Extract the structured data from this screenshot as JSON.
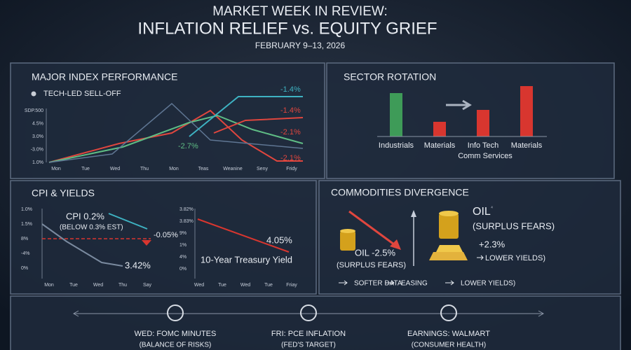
{
  "header": {
    "title": "MARKET WEEK IN REVIEW:",
    "subtitle": "INFLATION RELIEF vs.  EQUITY GRIEF",
    "date": "FEBRUARY 9–13, 2026"
  },
  "index_panel": {
    "title": "MAJOR INDEX PERFORMANCE",
    "legend": "TECH-LED SELL-OFF",
    "yticks": [
      "SDP.500",
      "4.5%",
      "3.0%",
      "-3.0%",
      "1.0%"
    ],
    "xticks": [
      "Mon",
      "Tue",
      "Wed",
      "Thu",
      "Mon",
      "Teas",
      "Weanine",
      "Seny",
      "Fridy"
    ],
    "labels": [
      "-1.4%",
      "-1.4%",
      "-2.1%",
      "-2.7%",
      "-2.1%"
    ]
  },
  "sector_panel": {
    "title": "SECTOR ROTATION",
    "categories": [
      "Industrials",
      "Materials",
      "Info Tech",
      "Materials"
    ],
    "note": "Comm Services"
  },
  "cpi_panel": {
    "title": "CPI & YIELDS",
    "left_yticks": [
      "1.0%",
      "1.5%",
      "8%",
      "-4%",
      "0%"
    ],
    "left_xticks": [
      "Mon",
      "Tue",
      "Wed",
      "Thu",
      "Say"
    ],
    "cpi": "CPI 0.2%",
    "cpi_note": "(BELOW 0.3% EST)",
    "change": "-0.05%",
    "end": "3.42%",
    "right_yticks": [
      "3.82%",
      "3.83%",
      "9%",
      "1%",
      "4%",
      "0%"
    ],
    "right_xticks": [
      "Wed",
      "Tue",
      "Wed",
      "Tue",
      "Friay"
    ],
    "yield": "4.05%",
    "yield_label": "10-Year Treasury Yield"
  },
  "commodities_panel": {
    "title": "COMMODITIES DIVERGENCE",
    "oil_title": "OIL",
    "oil_sup": "⁴",
    "oil_note": "(SURPLUS FEARS)",
    "oil_change": "OIL -2.5%",
    "oil_change_note": "(SURPLUS FEARS)",
    "gold_change": "+2.3%",
    "gold_note": "LOWER YIELDS)",
    "flow": [
      "SOFTER DATA",
      "EASING",
      "LOWER YIELDS)"
    ]
  },
  "events": [
    {
      "title": "WED: FOMC MINUTES",
      "note": "(BALANCE OF RISKS)"
    },
    {
      "title": "FRI: PCE INFLATION",
      "note": "(FED'S TARGET)"
    },
    {
      "title": "EARNINGS: WALMART",
      "note": "(CONSUMER HEALTH)"
    }
  ]
}
